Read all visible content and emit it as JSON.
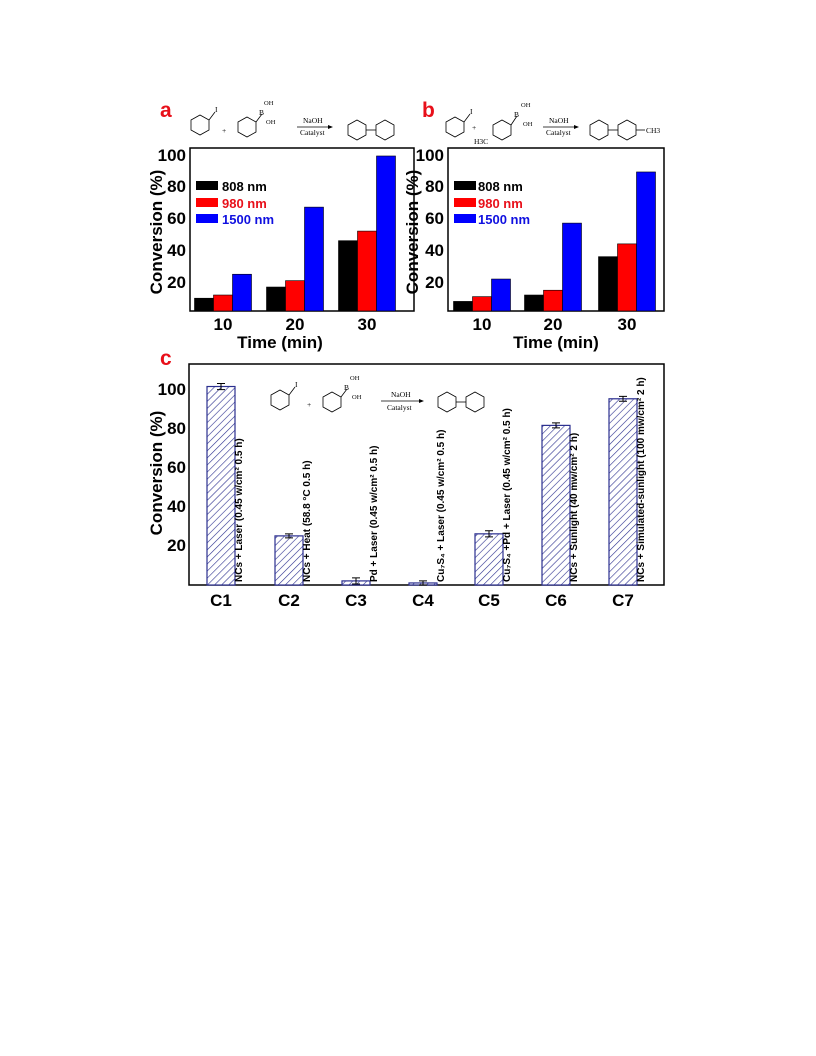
{
  "panels": {
    "a": {
      "letter": "a",
      "scheme": {
        "iodo": "I",
        "boronic_top": "OH",
        "boronic_b": "B",
        "boronic_right": "OH",
        "reagent": "NaOH",
        "catalyst": "Catalyst",
        "plus": "+"
      },
      "chart_data": {
        "type": "bar",
        "categories": [
          "10",
          "20",
          "30"
        ],
        "series": [
          {
            "name": "808 nm",
            "color": "#000000",
            "values": [
              8,
              15,
              44
            ]
          },
          {
            "name": "980 nm",
            "color": "#ff0000",
            "values": [
              10,
              19,
              50
            ]
          },
          {
            "name": "1500 nm",
            "color": "#0000ff",
            "values": [
              23,
              65,
              97
            ]
          }
        ],
        "xlabel": "Time (min)",
        "ylabel": "Conversion (%)",
        "yticks": [
          "20",
          "40",
          "60",
          "80",
          "100"
        ],
        "ylim": [
          0,
          102
        ],
        "legend_position": "top-left"
      }
    },
    "b": {
      "letter": "b",
      "scheme": {
        "iodo": "I",
        "boronic_top": "OH",
        "boronic_b": "B",
        "boronic_right": "OH",
        "methyl_left": "H3C",
        "product_methyl": "CH3",
        "reagent": "NaOH",
        "catalyst": "Catalyst",
        "plus": "+"
      },
      "chart_data": {
        "type": "bar",
        "categories": [
          "10",
          "20",
          "30"
        ],
        "series": [
          {
            "name": "808 nm",
            "color": "#000000",
            "values": [
              6,
              10,
              34
            ]
          },
          {
            "name": "980 nm",
            "color": "#ff0000",
            "values": [
              9,
              13,
              42
            ]
          },
          {
            "name": "1500 nm",
            "color": "#0000ff",
            "values": [
              20,
              55,
              87
            ]
          }
        ],
        "xlabel": "Time (min)",
        "ylabel": "Conversion (%)",
        "yticks": [
          "20",
          "40",
          "60",
          "80",
          "100"
        ],
        "ylim": [
          0,
          102
        ],
        "legend_position": "top-left"
      }
    },
    "c": {
      "letter": "c",
      "scheme": {
        "iodo": "I",
        "boronic_top": "OH",
        "boronic_b": "B",
        "boronic_right": "OH",
        "reagent": "NaOH",
        "catalyst": "Catalyst",
        "plus": "+"
      },
      "chart_data": {
        "type": "bar",
        "categories": [
          "C1",
          "C2",
          "C3",
          "C4",
          "C5",
          "C6",
          "C7"
        ],
        "values": [
          97,
          24,
          2,
          1,
          25,
          78,
          91
        ],
        "errors": [
          1.5,
          1,
          1.5,
          1,
          1.5,
          1.2,
          1.2
        ],
        "condition_labels": [
          "NCs + Laser (0.45 w/cm² 0.5 h)",
          "NCs + Heat (58.8 °C 0.5 h)",
          "Pd + Laser (0.45 w/cm² 0.5 h)",
          "Cu₇S₄ + Laser (0.45 w/cm² 0.5 h)",
          "Cu₇S₄ +Pd + Laser (0.45 w/cm² 0.5 h)",
          "NCs + Sunlight (40 mw/cm² 2 h)",
          "NCs + Simulated-sunlight (100 mw/cm² 2 h)"
        ],
        "ylabel": "Conversion (%)",
        "yticks": [
          "20",
          "40",
          "60",
          "80",
          "100"
        ],
        "ylim": [
          0,
          108
        ],
        "bar_color": "#2b2f8f",
        "fill_pattern": "diagonal-hatch"
      }
    }
  }
}
